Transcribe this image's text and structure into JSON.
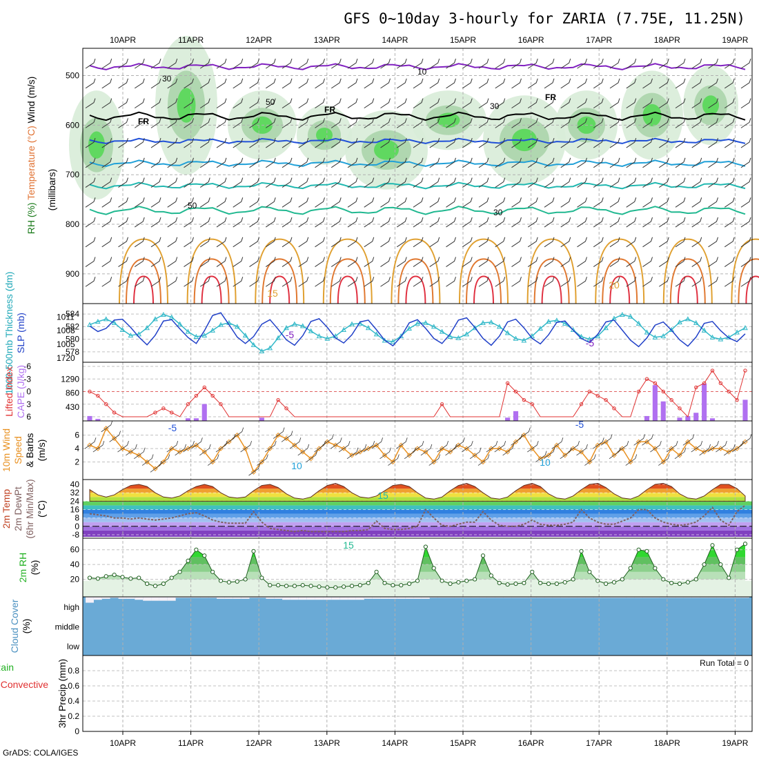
{
  "title": "GFS 0~10day 3-hourly for ZARIA (7.75E, 11.25N)",
  "credit": "GrADS: COLA/IGES",
  "dates": [
    "10APR",
    "11APR",
    "12APR",
    "13APR",
    "14APR",
    "15APR",
    "16APR",
    "17APR",
    "18APR",
    "19APR"
  ],
  "colors": {
    "rh_green": "#4cd84c",
    "slp": "#2040c8",
    "thickness": "#30b8c8",
    "li": "#e03030",
    "cape": "#b070f0",
    "wind": "#e89020",
    "temp_max": "#c82020",
    "rh2m": "#20b020",
    "cloud": "#6aaad6",
    "freezing": "#000000",
    "purple_iso": "#8020c0"
  },
  "panels": {
    "profile": {
      "ylabel_wind": "Wind (m/s)",
      "ylabel_temp": "Temperature (°C)",
      "ylabel_rh": "RH (%)",
      "ylabel_units": "(millibars)",
      "pressure_ticks": [
        "500",
        "600",
        "700",
        "800",
        "900"
      ],
      "fr_labels": [
        "FR",
        "FR",
        "FR"
      ],
      "iso_labels": [
        "-5",
        "-5",
        "-5",
        "-5",
        "10",
        "10",
        "15",
        "20",
        "15",
        "15"
      ],
      "rh_labels": [
        "30",
        "30",
        "50",
        "50",
        "30",
        "10"
      ]
    },
    "slp": {
      "ylabel_thick": "1000-500mb Thickness (dm)",
      "ylabel_slp": "SLP (mb)",
      "thick_ticks": [
        "584",
        "582",
        "580",
        "578"
      ],
      "slp_ticks": [
        "1011",
        "1008",
        "1005"
      ],
      "ticks_extra": "1720"
    },
    "cape": {
      "ylabel_li": "Lifted Index",
      "ylabel_cape": "CAPE (J/kg)",
      "li_ticks": [
        "-6",
        "-3",
        "0",
        "3",
        "6"
      ],
      "cape_ticks": [
        "1290",
        "860",
        "430"
      ]
    },
    "wind10": {
      "ylabel1": "10m Wind",
      "ylabel2": "Speed",
      "ylabel3": "& Barbs",
      "ylabel_units": "(m/s)",
      "ticks": [
        "6",
        "4",
        "2"
      ]
    },
    "temp2m": {
      "ylabel1": "2m Temp",
      "ylabel2": "2m DewPt",
      "ylabel3": "(6hr Min/Max)",
      "ylabel_units": "(°C)",
      "ticks": [
        "40",
        "32",
        "24",
        "16",
        "8",
        "0",
        "-8"
      ]
    },
    "rh2m": {
      "ylabel": "2m RH",
      "ylabel_units": "(%)",
      "ticks": [
        "60",
        "40",
        "20"
      ]
    },
    "cloud": {
      "ylabel": "Cloud Cover",
      "ylabel_units": "(%)",
      "levels": [
        "high",
        "middle",
        "low"
      ]
    },
    "precip": {
      "ylabel_total": "Total / Rain",
      "ylabel_conv": "Convective",
      "ylabel_units": "3hr Precip (mm)",
      "ticks": [
        "0.8",
        "0.6",
        "0.4",
        "0.2",
        "0"
      ],
      "run_total": "Run Total = 0"
    }
  },
  "chart_data": [
    {
      "type": "line",
      "name": "SLP",
      "ylabel": "SLP (mb)",
      "ylim": [
        1002,
        1013
      ],
      "x_steps": 81,
      "x_start": "10APR",
      "values": [
        1009,
        1007.8,
        1008.5,
        1010.3,
        1010.5,
        1008.7,
        1006.6,
        1004.9,
        1007,
        1010.1,
        1010.4,
        1008.4,
        1006.5,
        1005.2,
        1008,
        1011.3,
        1011.9,
        1009.3,
        1006.6,
        1005.2,
        1006.7,
        1009.4,
        1010.4,
        1008.3,
        1006,
        1004.8,
        1006.9,
        1010,
        1010.6,
        1008.7,
        1006.4,
        1005.3,
        1007.1,
        1009.9,
        1010.3,
        1008.2,
        1005.9,
        1004.7,
        1006.7,
        1009.7,
        1010.4,
        1008.5,
        1006.3,
        1005.2,
        1007.3,
        1010.3,
        1010.8,
        1008.7,
        1006.3,
        1004.8,
        1006.8,
        1009.9,
        1010.5,
        1008.6,
        1006.3,
        1005.1,
        1007.1,
        1009.8,
        1010.1,
        1008.1,
        1006.3,
        1005.4,
        1007.2,
        1009.9,
        1010.3,
        1008.1,
        1005.9,
        1004.5,
        1006.4,
        1009.2,
        1009.9,
        1008.1,
        1006,
        1004.6,
        1006.6,
        1009.6,
        1010,
        1008,
        1006.4,
        1005.6,
        1007.3
      ]
    },
    {
      "type": "line",
      "name": "Thickness",
      "ylabel": "1000-500mb Thickness (dm)",
      "ylim": [
        577,
        585
      ],
      "x_steps": 81,
      "values": [
        582.3,
        582.8,
        583.2,
        582.6,
        581.5,
        580.6,
        580.8,
        581.8,
        583.2,
        583.9,
        583.5,
        582.4,
        581.2,
        580.4,
        580.6,
        581.4,
        582.3,
        582.6,
        582,
        580.6,
        579.1,
        578.1,
        578.6,
        580.2,
        581.8,
        582.4,
        582.1,
        581.3,
        580.5,
        580.1,
        580.5,
        581.5,
        582.4,
        582.5,
        581.8,
        580.8,
        579.8,
        579.6,
        580.5,
        581.7,
        582.5,
        582.6,
        582,
        581.2,
        580.4,
        580.2,
        580.8,
        581.8,
        582.6,
        582.7,
        582,
        581,
        580.1,
        579.8,
        580.5,
        581.7,
        582.8,
        583,
        582.5,
        581.5,
        580.4,
        580,
        580.5,
        581.8,
        583.3,
        583.9,
        583.6,
        582.5,
        581.1,
        580.3,
        580.5,
        581.5,
        582.7,
        583.2,
        582.6,
        581.4,
        580.3,
        580,
        580.3,
        581.1,
        581.8
      ]
    },
    {
      "type": "line",
      "name": "2m RH",
      "ylabel": "2m RH (%)",
      "ylim": [
        0,
        70
      ],
      "x_steps": 81,
      "values": [
        22,
        21,
        24,
        26,
        23,
        21,
        22,
        14,
        11,
        14,
        22,
        30,
        45,
        60,
        52,
        30,
        18,
        16,
        17,
        20,
        58,
        22,
        12,
        12,
        11,
        11,
        12,
        11,
        10,
        9,
        9,
        10,
        11,
        12,
        15,
        30,
        15,
        12,
        12,
        14,
        18,
        64,
        35,
        18,
        14,
        16,
        18,
        20,
        52,
        25,
        15,
        13,
        14,
        15,
        30,
        15,
        14,
        14,
        16,
        20,
        58,
        30,
        18,
        14,
        16,
        20,
        35,
        60,
        58,
        35,
        20,
        15,
        14,
        16,
        20,
        40,
        66,
        40,
        22,
        60,
        68
      ]
    },
    {
      "type": "line",
      "name": "10m Wind Speed",
      "ylabel": "Speed (m/s)",
      "ylim": [
        0,
        7.5
      ],
      "x_steps": 81,
      "values": [
        4.5,
        4,
        7,
        5.5,
        4,
        3.5,
        3,
        2,
        1,
        2,
        4,
        3.5,
        4,
        4.5,
        3.5,
        2,
        4,
        5,
        6,
        4,
        0.5,
        2,
        4,
        6,
        5.5,
        4.5,
        3.5,
        2.5,
        4,
        5,
        4.5,
        4,
        3,
        3.5,
        4,
        4.5,
        3,
        2,
        4.5,
        3,
        4,
        3.5,
        2,
        4,
        3.5,
        4.5,
        4,
        3,
        2,
        4,
        4,
        3.5,
        5,
        6,
        4,
        2.5,
        3,
        4.5,
        3,
        4,
        3.5,
        2,
        4.5,
        5,
        3,
        4,
        2,
        5,
        5,
        4,
        2,
        4,
        3,
        5,
        4,
        3.5,
        4,
        4,
        3.5,
        4,
        5
      ]
    },
    {
      "type": "line",
      "name": "Lifted Index",
      "ylabel": "Lifted Index",
      "ylim": [
        -6,
        6
      ],
      "x_steps": 81,
      "values": [
        0,
        1,
        3,
        5,
        6,
        6,
        6,
        6,
        5,
        4,
        5,
        6,
        3,
        1,
        -1,
        1,
        3,
        6,
        6,
        6,
        6,
        6,
        6,
        2,
        4,
        6,
        6,
        6,
        6,
        6,
        6,
        6,
        6,
        6,
        6,
        6,
        6,
        6,
        6,
        6,
        6,
        6,
        6,
        3,
        6,
        6,
        6,
        6,
        6,
        6,
        6,
        -2,
        0,
        2,
        3,
        6,
        6,
        6,
        6,
        6,
        3,
        0,
        1,
        2,
        4,
        6,
        6,
        0,
        -3,
        -2,
        0,
        2,
        4,
        6,
        -1,
        -2,
        -5,
        -2,
        0,
        2,
        -5
      ]
    },
    {
      "type": "bar",
      "name": "CAPE",
      "ylabel": "CAPE (J/kg)",
      "ylim": [
        0,
        1720
      ],
      "x_steps": 81,
      "values": [
        150,
        60,
        0,
        0,
        0,
        0,
        0,
        0,
        0,
        0,
        0,
        0,
        80,
        80,
        520,
        0,
        0,
        0,
        0,
        0,
        0,
        100,
        0,
        0,
        0,
        0,
        0,
        0,
        0,
        0,
        0,
        0,
        0,
        0,
        0,
        0,
        0,
        0,
        0,
        0,
        0,
        0,
        0,
        0,
        0,
        0,
        0,
        0,
        0,
        0,
        0,
        100,
        300,
        0,
        0,
        0,
        0,
        0,
        0,
        0,
        0,
        0,
        0,
        0,
        0,
        0,
        0,
        0,
        150,
        1100,
        600,
        0,
        100,
        150,
        250,
        1150,
        80,
        0,
        0,
        0,
        650
      ]
    },
    {
      "type": "area",
      "name": "2m Temp",
      "ylabel": "Temp (°C)",
      "ylim": [
        -10,
        42
      ],
      "x_steps": 81,
      "values": [
        35,
        30,
        28,
        30,
        35,
        39,
        40,
        38,
        32,
        28,
        27,
        29,
        34,
        38,
        40,
        38,
        32,
        28,
        27,
        28,
        34,
        39,
        40,
        37,
        31,
        27,
        26,
        28,
        34,
        39,
        41,
        38,
        32,
        28,
        27,
        29,
        34,
        39,
        40,
        38,
        32,
        27,
        26,
        28,
        34,
        39,
        41,
        38,
        32,
        27,
        26,
        28,
        34,
        39,
        41,
        38,
        31,
        27,
        26,
        29,
        35,
        40,
        41,
        37,
        31,
        27,
        26,
        29,
        35,
        40,
        41,
        38,
        31,
        27,
        26,
        29,
        35,
        40,
        40,
        36,
        29
      ]
    },
    {
      "type": "line",
      "name": "2m DewPt",
      "ylabel": "DewPt (°C)",
      "ylim": [
        -10,
        42
      ],
      "x_steps": 81,
      "values": [
        12,
        11,
        10,
        8,
        8,
        7,
        8,
        7,
        6,
        7,
        8,
        10,
        12,
        13,
        10,
        6,
        4,
        3,
        3,
        3,
        14,
        4,
        -2,
        -3,
        -4,
        -5,
        -4,
        -5,
        -5,
        -5,
        -5,
        -5,
        -4,
        -4,
        -3,
        5,
        -2,
        -3,
        -3,
        -2,
        0,
        16,
        8,
        1,
        0,
        2,
        4,
        4,
        14,
        6,
        1,
        0,
        0,
        2,
        6,
        2,
        1,
        1,
        2,
        4,
        16,
        8,
        4,
        2,
        2,
        5,
        8,
        16,
        16,
        8,
        4,
        2,
        1,
        2,
        4,
        10,
        18,
        6,
        1,
        14,
        20
      ]
    },
    {
      "type": "area",
      "name": "Cloud Cover",
      "ylabel": "Cloud Cover (%)",
      "ylim": [
        0,
        100
      ],
      "x_steps": 81,
      "values": [
        70,
        85,
        90,
        95,
        90,
        90,
        85,
        80,
        80,
        80,
        80,
        95,
        95,
        95,
        95,
        95,
        90,
        90,
        90,
        90,
        95,
        95,
        90,
        90,
        85,
        85,
        85,
        85,
        85,
        85,
        85,
        85,
        85,
        85,
        90,
        90,
        90,
        90,
        90,
        90,
        90,
        90,
        95,
        95,
        95,
        95,
        95,
        95,
        95,
        95,
        95,
        95,
        95,
        95,
        95,
        95,
        95,
        95,
        95,
        95,
        95,
        95,
        95,
        95,
        95,
        95,
        95,
        95,
        95,
        95,
        95,
        95,
        95,
        95,
        95,
        95,
        95,
        95,
        95,
        95,
        95
      ]
    },
    {
      "type": "bar",
      "name": "3hr Precip",
      "ylabel": "3hr Precip (mm)",
      "ylim": [
        0,
        1
      ],
      "x_steps": 81,
      "values": [
        0,
        0,
        0,
        0,
        0,
        0,
        0,
        0,
        0,
        0,
        0,
        0,
        0,
        0,
        0,
        0,
        0,
        0,
        0,
        0,
        0,
        0,
        0,
        0,
        0,
        0,
        0,
        0,
        0,
        0,
        0,
        0,
        0,
        0,
        0,
        0,
        0,
        0,
        0,
        0,
        0,
        0,
        0,
        0,
        0,
        0,
        0,
        0,
        0,
        0,
        0,
        0,
        0,
        0,
        0,
        0,
        0,
        0,
        0,
        0,
        0,
        0,
        0,
        0,
        0,
        0,
        0,
        0,
        0,
        0,
        0,
        0,
        0,
        0,
        0,
        0,
        0,
        0,
        0,
        0,
        0
      ]
    }
  ]
}
